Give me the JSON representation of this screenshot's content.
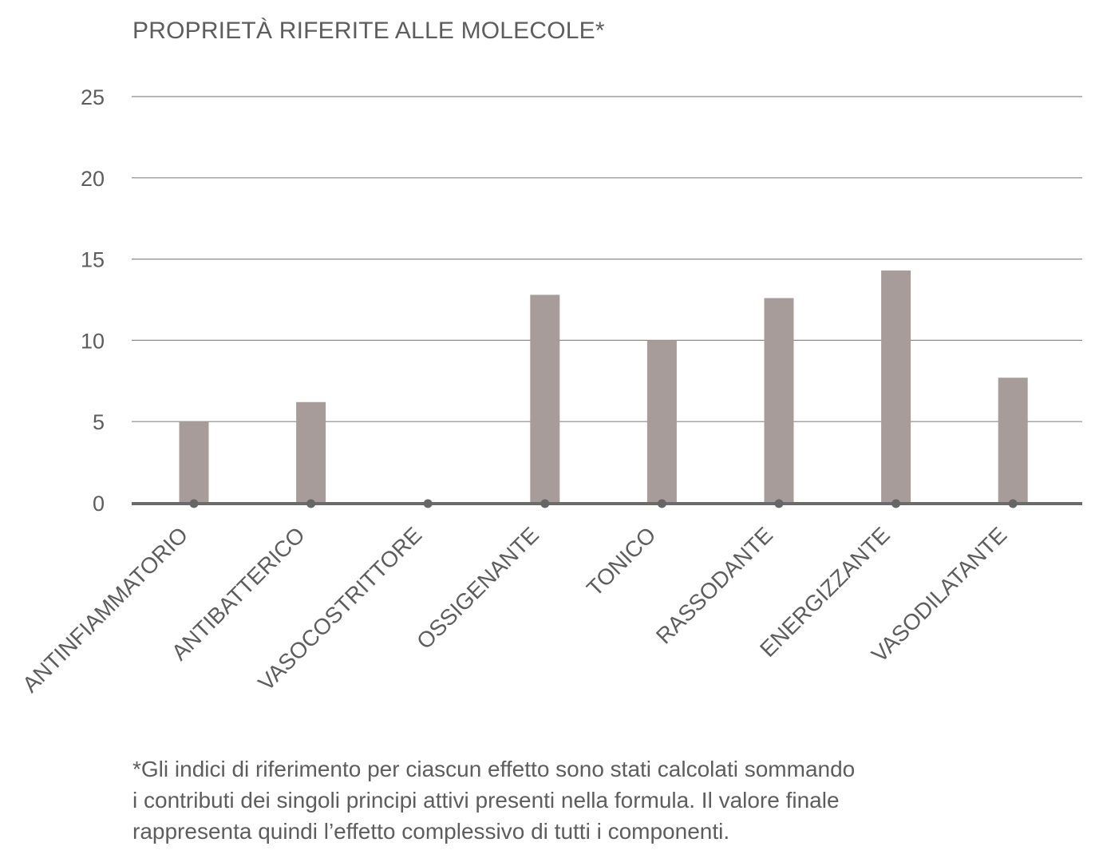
{
  "chart_data": {
    "type": "bar",
    "title": "PROPRIETÀ RIFERITE ALLE MOLECOLE*",
    "categories": [
      "ANTINFIAMMATORIO",
      "ANTIBATTERICO",
      "VASOCOSTRITTORE",
      "OSSIGENANTE",
      "TONICO",
      "RASSODANTE",
      "ENERGIZZANTE",
      "VASODILATANTE"
    ],
    "values": [
      5,
      6.2,
      0,
      12.8,
      10,
      12.6,
      14.3,
      7.7
    ],
    "ylim": [
      0,
      25
    ],
    "yticks": [
      "0",
      "5",
      "10",
      "15",
      "20",
      "25"
    ],
    "xlabel": "",
    "ylabel": "",
    "grid": true,
    "legend": "none",
    "colors": {
      "bar": "#a89c9b",
      "grid": "#8a8a8a",
      "baseline": "#6a6a6a",
      "marker": "#666666",
      "text": "#5d5d5d"
    }
  },
  "footnote": "*Gli indici di riferimento per ciascun effetto sono stati calcolati sommando\ni contributi dei singoli principi attivi presenti nella formula. Il valore finale\nrappresenta quindi l’effetto complessivo di tutti i componenti."
}
